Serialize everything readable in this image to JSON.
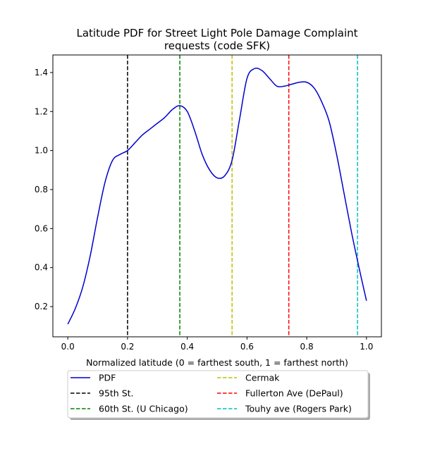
{
  "chart_data": {
    "type": "line",
    "title": "Latitude PDF for Street Light Pole Damage Complaint requests (code SFK)",
    "title_lines": [
      "Latitude PDF for Street Light Pole Damage Complaint",
      "requests (code SFK)"
    ],
    "xlabel": "Normalized latitude (0 = farthest south, 1 = farthest north)",
    "ylabel": "",
    "xlim": [
      -0.05,
      1.05
    ],
    "ylim": [
      0.045,
      1.49
    ],
    "xticks": [
      0.0,
      0.2,
      0.4,
      0.6,
      0.8,
      1.0
    ],
    "xtick_labels": [
      "0.0",
      "0.2",
      "0.4",
      "0.6",
      "0.8",
      "1.0"
    ],
    "yticks": [
      0.2,
      0.4,
      0.6,
      0.8,
      1.0,
      1.2,
      1.4
    ],
    "ytick_labels": [
      "0.2",
      "0.4",
      "0.6",
      "0.8",
      "1.0",
      "1.2",
      "1.4"
    ],
    "grid": false,
    "legend_position": "below",
    "series": [
      {
        "name": "PDF",
        "color": "#0000cc",
        "style": "solid",
        "x": [
          0.0,
          0.025,
          0.05,
          0.075,
          0.1,
          0.125,
          0.15,
          0.175,
          0.2,
          0.225,
          0.25,
          0.275,
          0.3,
          0.325,
          0.35,
          0.375,
          0.4,
          0.425,
          0.45,
          0.475,
          0.5,
          0.525,
          0.55,
          0.575,
          0.6,
          0.625,
          0.65,
          0.675,
          0.7,
          0.725,
          0.75,
          0.775,
          0.8,
          0.825,
          0.85,
          0.875,
          0.9,
          0.925,
          0.95,
          0.975,
          1.0
        ],
        "y": [
          0.11,
          0.19,
          0.3,
          0.46,
          0.66,
          0.84,
          0.95,
          0.98,
          1.0,
          1.04,
          1.08,
          1.11,
          1.14,
          1.17,
          1.21,
          1.23,
          1.2,
          1.1,
          0.98,
          0.9,
          0.86,
          0.87,
          0.95,
          1.16,
          1.37,
          1.42,
          1.41,
          1.37,
          1.33,
          1.33,
          1.34,
          1.35,
          1.35,
          1.32,
          1.25,
          1.15,
          0.98,
          0.78,
          0.58,
          0.4,
          0.23
        ]
      },
      {
        "name": "95th St.",
        "color": "#000000",
        "style": "dashed",
        "vline": 0.2
      },
      {
        "name": "60th St. (U Chicago)",
        "color": "#008000",
        "style": "dashed",
        "vline": 0.375
      },
      {
        "name": "Cermak",
        "color": "#bfbf00",
        "style": "dashed",
        "vline": 0.55
      },
      {
        "name": "Fullerton Ave (DePaul)",
        "color": "#ff0000",
        "style": "dashed",
        "vline": 0.74
      },
      {
        "name": "Touhy ave (Rogers Park)",
        "color": "#00bfbf",
        "style": "dashed",
        "vline": 0.97
      }
    ]
  }
}
